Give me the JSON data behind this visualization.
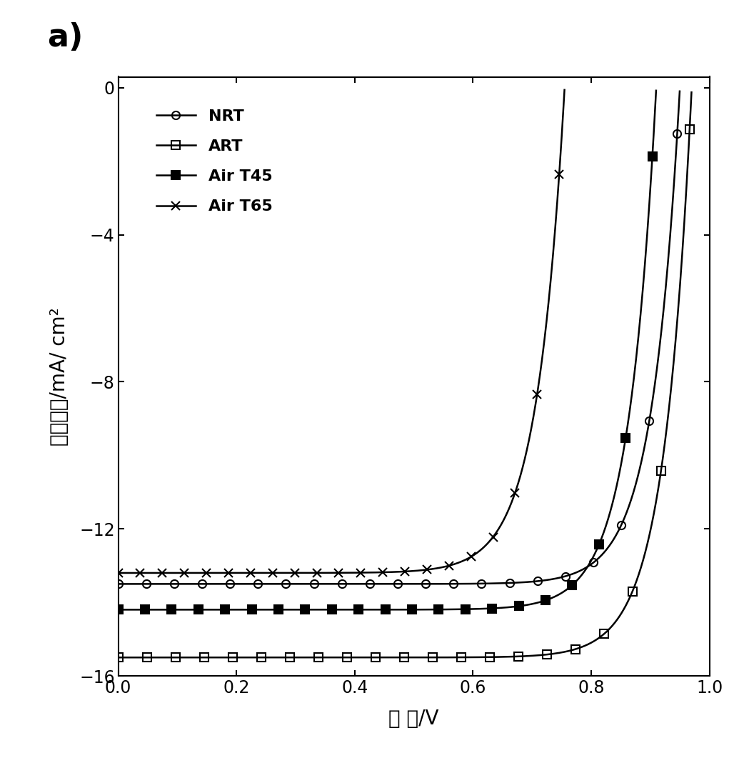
{
  "title": "a)",
  "xlabel": "电 压/V",
  "ylabel": "电流密度/mA/ cm²",
  "xlim": [
    0,
    1.0
  ],
  "ylim": [
    -16,
    0.3
  ],
  "xticks": [
    0,
    0.2,
    0.4,
    0.6,
    0.8,
    1.0
  ],
  "yticks": [
    0,
    -4,
    -8,
    -12,
    -16
  ],
  "series": [
    {
      "label": "NRT",
      "Jsc": -13.5,
      "Voc": 0.95,
      "n": 1.8,
      "marker": "o",
      "fillstyle": "none",
      "color": "black",
      "markersize": 8,
      "lw": 1.8
    },
    {
      "label": "ART",
      "Jsc": -15.5,
      "Voc": 0.97,
      "n": 1.8,
      "marker": "s",
      "fillstyle": "none",
      "color": "black",
      "markersize": 8,
      "lw": 1.8
    },
    {
      "label": "Air T45",
      "Jsc": -14.2,
      "Voc": 0.91,
      "n": 1.8,
      "marker": "s",
      "fillstyle": "full",
      "color": "black",
      "markersize": 8,
      "lw": 1.8
    },
    {
      "label": "Air T65",
      "Jsc": -13.2,
      "Voc": 0.755,
      "n": 1.8,
      "marker": "x",
      "fillstyle": "none",
      "color": "black",
      "markersize": 8,
      "lw": 1.8
    }
  ],
  "background_color": "white",
  "legend_fontsize": 16,
  "axis_label_fontsize": 20,
  "tick_fontsize": 17,
  "title_fontsize": 32,
  "num_markers": 20
}
